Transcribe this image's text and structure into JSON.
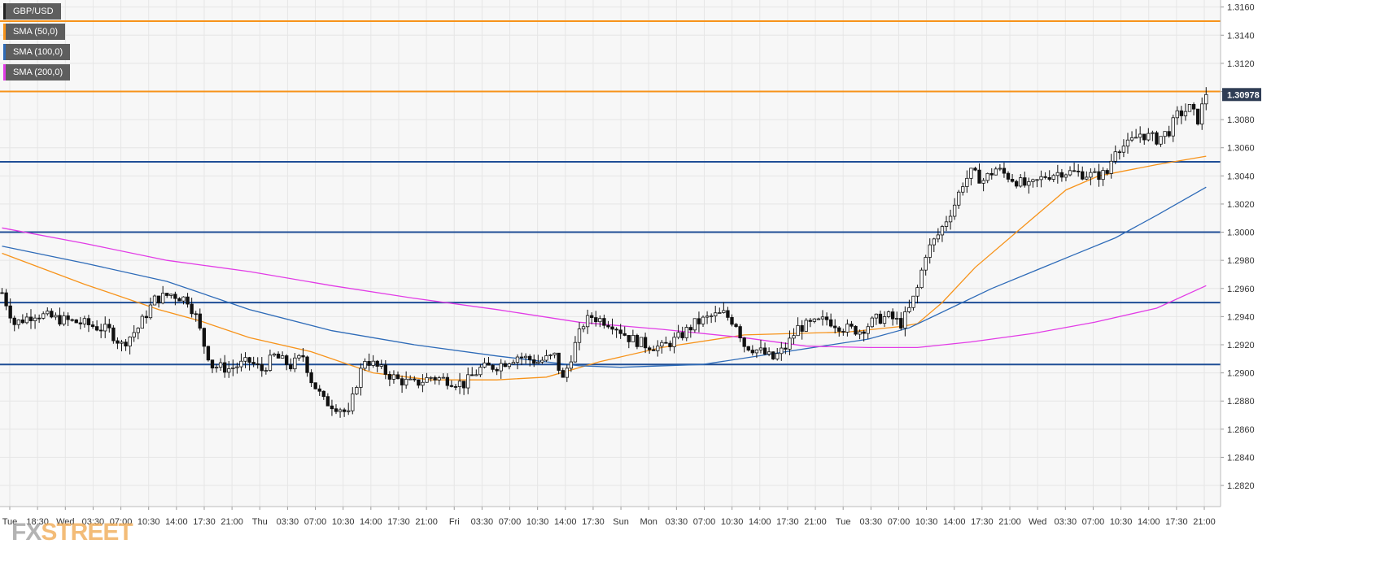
{
  "symbol": "GBP/USD",
  "legend": [
    {
      "label": "GBP/USD",
      "color": "#222222"
    },
    {
      "label": "SMA (50,0)",
      "color": "#f7931a"
    },
    {
      "label": "SMA (100,0)",
      "color": "#2e6bb8"
    },
    {
      "label": "SMA (200,0)",
      "color": "#e23ce6"
    }
  ],
  "watermark": {
    "left": "FX",
    "right": "STREET"
  },
  "colors": {
    "bull": "#ffffff",
    "bear": "#111111",
    "wick": "#111111",
    "grid": "#e6e6e6",
    "hline_blue": "#1f4e96",
    "hline_orange": "#f7931a",
    "price_tag": "#2f3d55"
  },
  "chart_data": {
    "type": "candlestick",
    "title": "GBP/USD",
    "ylim": [
      1.2805,
      1.3165
    ],
    "y_ticks": [
      "1.2820",
      "1.2840",
      "1.2860",
      "1.2880",
      "1.2900",
      "1.2920",
      "1.2940",
      "1.2960",
      "1.2980",
      "1.3000",
      "1.3020",
      "1.3040",
      "1.3060",
      "1.3080",
      "1.3100",
      "1.3120",
      "1.3140",
      "1.3160"
    ],
    "x_tick_labels": [
      "Tue",
      "18:30",
      "Wed",
      "03:30",
      "07:00",
      "10:30",
      "14:00",
      "17:30",
      "21:00",
      "Thu",
      "03:30",
      "07:00",
      "10:30",
      "14:00",
      "17:30",
      "21:00",
      "Fri",
      "03:30",
      "07:00",
      "10:30",
      "14:00",
      "17:30",
      "Sun",
      "Mon",
      "03:30",
      "07:00",
      "10:30",
      "14:00",
      "17:30",
      "21:00",
      "Tue",
      "03:30",
      "07:00",
      "10:30",
      "14:00",
      "17:30",
      "21:00",
      "Wed",
      "03:30",
      "07:00",
      "10:30",
      "14:00",
      "17:30",
      "21:00"
    ],
    "last_price": "1.30978",
    "horizontal_levels": [
      {
        "value": 1.315,
        "color": "orange"
      },
      {
        "value": 1.31,
        "color": "orange"
      },
      {
        "value": 1.305,
        "color": "blue"
      },
      {
        "value": 1.3,
        "color": "blue"
      },
      {
        "value": 1.295,
        "color": "blue"
      },
      {
        "value": 1.2906,
        "color": "blue"
      }
    ],
    "price_path": [
      [
        0,
        1.2957
      ],
      [
        3,
        1.2935
      ],
      [
        8,
        1.2942
      ],
      [
        14,
        1.2938
      ],
      [
        20,
        1.2935
      ],
      [
        26,
        1.293
      ],
      [
        29,
        1.292
      ],
      [
        33,
        1.2932
      ],
      [
        37,
        1.2952
      ],
      [
        41,
        1.2956
      ],
      [
        45,
        1.2952
      ],
      [
        47,
        1.294
      ],
      [
        49,
        1.292
      ],
      [
        51,
        1.2905
      ],
      [
        55,
        1.2903
      ],
      [
        60,
        1.2908
      ],
      [
        63,
        1.2902
      ],
      [
        66,
        1.2912
      ],
      [
        70,
        1.2905
      ],
      [
        73,
        1.2912
      ],
      [
        75,
        1.2895
      ],
      [
        78,
        1.288
      ],
      [
        82,
        1.2875
      ],
      [
        84,
        1.287
      ],
      [
        86,
        1.2893
      ],
      [
        88,
        1.291
      ],
      [
        92,
        1.2902
      ],
      [
        96,
        1.2895
      ],
      [
        100,
        1.2892
      ],
      [
        104,
        1.2897
      ],
      [
        108,
        1.2895
      ],
      [
        112,
        1.2892
      ],
      [
        116,
        1.2903
      ],
      [
        120,
        1.2905
      ],
      [
        125,
        1.2912
      ],
      [
        130,
        1.2908
      ],
      [
        134,
        1.2912
      ],
      [
        136,
        1.2895
      ],
      [
        139,
        1.292
      ],
      [
        141,
        1.2935
      ],
      [
        143,
        1.294
      ],
      [
        148,
        1.2935
      ],
      [
        152,
        1.2925
      ],
      [
        156,
        1.292
      ],
      [
        160,
        1.2918
      ],
      [
        164,
        1.2925
      ],
      [
        168,
        1.2935
      ],
      [
        172,
        1.294
      ],
      [
        175,
        1.2942
      ],
      [
        178,
        1.2935
      ],
      [
        180,
        1.292
      ],
      [
        184,
        1.2915
      ],
      [
        187,
        1.291
      ],
      [
        190,
        1.2918
      ],
      [
        193,
        1.2932
      ],
      [
        197,
        1.2935
      ],
      [
        200,
        1.2938
      ],
      [
        204,
        1.2932
      ],
      [
        208,
        1.293
      ],
      [
        212,
        1.2938
      ],
      [
        215,
        1.294
      ],
      [
        218,
        1.2935
      ],
      [
        220,
        1.2945
      ],
      [
        222,
        1.296
      ],
      [
        224,
        1.2985
      ],
      [
        227,
        1.2998
      ],
      [
        231,
        1.302
      ],
      [
        233,
        1.3035
      ],
      [
        235,
        1.3042
      ],
      [
        238,
        1.3037
      ],
      [
        241,
        1.3045
      ],
      [
        245,
        1.3038
      ],
      [
        249,
        1.3032
      ],
      [
        253,
        1.304
      ],
      [
        257,
        1.3043
      ],
      [
        261,
        1.3042
      ],
      [
        265,
        1.304
      ],
      [
        268,
        1.3042
      ],
      [
        270,
        1.306
      ],
      [
        273,
        1.3062
      ],
      [
        276,
        1.307
      ],
      [
        280,
        1.3066
      ],
      [
        283,
        1.3072
      ],
      [
        285,
        1.3083
      ],
      [
        288,
        1.3088
      ],
      [
        290,
        1.308
      ],
      [
        292,
        1.3098
      ]
    ],
    "series": [
      {
        "name": "SMA (50,0)",
        "color": "#f7931a",
        "points": [
          [
            0,
            1.2985
          ],
          [
            20,
            1.2963
          ],
          [
            38,
            1.2945
          ],
          [
            48,
            1.2937
          ],
          [
            60,
            1.2925
          ],
          [
            75,
            1.2915
          ],
          [
            90,
            1.29
          ],
          [
            104,
            1.2895
          ],
          [
            120,
            1.2895
          ],
          [
            132,
            1.2897
          ],
          [
            145,
            1.2908
          ],
          [
            160,
            1.2918
          ],
          [
            180,
            1.2927
          ],
          [
            192,
            1.2928
          ],
          [
            205,
            1.2929
          ],
          [
            218,
            1.2933
          ],
          [
            222,
            1.2935
          ],
          [
            228,
            1.295
          ],
          [
            236,
            1.2975
          ],
          [
            248,
            1.3005
          ],
          [
            258,
            1.303
          ],
          [
            266,
            1.304
          ],
          [
            280,
            1.3048
          ],
          [
            292,
            1.3054
          ]
        ]
      },
      {
        "name": "SMA (100,0)",
        "color": "#2e6bb8",
        "points": [
          [
            0,
            1.299
          ],
          [
            20,
            1.2978
          ],
          [
            40,
            1.2965
          ],
          [
            60,
            1.2945
          ],
          [
            80,
            1.293
          ],
          [
            100,
            1.292
          ],
          [
            120,
            1.2912
          ],
          [
            140,
            1.2905
          ],
          [
            150,
            1.2904
          ],
          [
            170,
            1.2906
          ],
          [
            190,
            1.2915
          ],
          [
            210,
            1.2924
          ],
          [
            220,
            1.2932
          ],
          [
            230,
            1.2946
          ],
          [
            240,
            1.296
          ],
          [
            250,
            1.2972
          ],
          [
            260,
            1.2984
          ],
          [
            270,
            1.2996
          ],
          [
            280,
            1.3012
          ],
          [
            292,
            1.3032
          ]
        ]
      },
      {
        "name": "SMA (200,0)",
        "color": "#e23ce6",
        "points": [
          [
            0,
            1.3003
          ],
          [
            20,
            1.2992
          ],
          [
            40,
            1.298
          ],
          [
            60,
            1.2972
          ],
          [
            80,
            1.2962
          ],
          [
            100,
            1.2953
          ],
          [
            120,
            1.2945
          ],
          [
            140,
            1.2936
          ],
          [
            160,
            1.2931
          ],
          [
            180,
            1.2925
          ],
          [
            195,
            1.2919
          ],
          [
            210,
            1.2918
          ],
          [
            222,
            1.2918
          ],
          [
            235,
            1.2922
          ],
          [
            250,
            1.2928
          ],
          [
            265,
            1.2936
          ],
          [
            280,
            1.2946
          ],
          [
            292,
            1.2962
          ]
        ]
      }
    ]
  }
}
